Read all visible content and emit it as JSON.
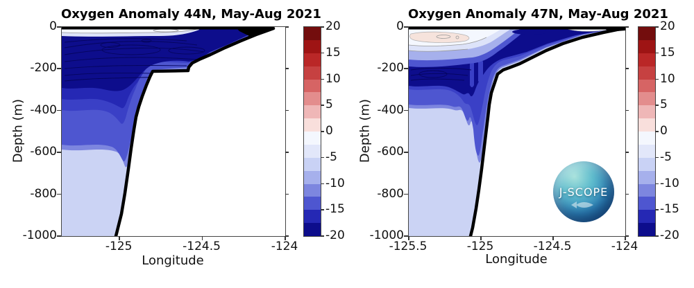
{
  "figure": {
    "background": "#ffffff"
  },
  "panels": [
    {
      "title": "Oxygen Anomaly 44N, May-Aug 2021",
      "xlabel": "Longitude",
      "ylabel": "Depth (m)",
      "x_ticks": [
        "-125",
        "-124.5",
        "-124"
      ],
      "x_tick_lons": [
        -125,
        -124.5,
        -124
      ],
      "y_ticks": [
        "0",
        "-200",
        "-400",
        "-600",
        "-800",
        "-1000"
      ]
    },
    {
      "title": "Oxygen Anomaly 47N, May-Aug 2021",
      "xlabel": "Longitude",
      "ylabel": "Depth (m)",
      "x_ticks": [
        "-125.5",
        "-125",
        "-124.5",
        "-124"
      ],
      "x_tick_lons": [
        -125.5,
        -125,
        -124.5,
        -124
      ],
      "y_ticks": [
        "0",
        "-200",
        "-400",
        "-600",
        "-800",
        "-1000"
      ]
    }
  ],
  "colorbar": {
    "tick_labels": [
      "20",
      "15",
      "10",
      "5",
      "0",
      "-5",
      "-10",
      "-15",
      "-20"
    ],
    "range": [
      -20,
      20
    ],
    "level_step": 2.5,
    "segments_top_to_bottom": [
      "#730d0d",
      "#9e1414",
      "#ba2727",
      "#c64141",
      "#d66464",
      "#e38d8d",
      "#efb7b7",
      "#f9dfdc",
      "#f4f7fe",
      "#e2e7fa",
      "#c9d2f5",
      "#a6b0ec",
      "#7d86df",
      "#4e56d0",
      "#2528b4",
      "#0d0d8c"
    ]
  },
  "palette": {
    "navy": "#0d0d8c",
    "blue2": "#2528b4",
    "blue3": "#3a40c6",
    "royal": "#4e56d0",
    "fringe": "#7d86df",
    "lightblue": "#a6b0ec",
    "paleband": "#dde3f9",
    "pale": "#cbd3f4",
    "white": "#f4f7fe",
    "pink": "#f6e3dc",
    "navyline": "#05055e",
    "grey": "#999999",
    "coast_line": "#000000"
  },
  "logo": {
    "text": "J-SCOPE"
  },
  "chart_data": [
    {
      "type": "heatmap",
      "subtype": "filled-contour-section",
      "title": "Oxygen Anomaly 44N, May-Aug 2021",
      "xlabel": "Longitude",
      "ylabel": "Depth (m)",
      "xlim": [
        -125.348,
        -124.0
      ],
      "ylim": [
        -1000,
        0
      ],
      "colorbar_range": [
        -20,
        20
      ],
      "contour_level_step": 2.5,
      "legend_position": "right-colorbar",
      "grid": false,
      "bathymetry_lon_depth": [
        [
          -124.07,
          0
        ],
        [
          -124.3,
          -120
        ],
        [
          -124.58,
          -205
        ],
        [
          -124.8,
          -215
        ],
        [
          -124.9,
          -420
        ],
        [
          -125.0,
          -800
        ],
        [
          -125.03,
          -1000
        ]
      ],
      "anomaly_profile_west_of_slope": [
        {
          "depth": -10,
          "value": -1
        },
        {
          "depth": -40,
          "value": -12
        },
        {
          "depth": -100,
          "value": -20
        },
        {
          "depth": -180,
          "value": -17
        },
        {
          "depth": -250,
          "value": -12
        },
        {
          "depth": -350,
          "value": -11
        },
        {
          "depth": -450,
          "value": -10
        },
        {
          "depth": -600,
          "value": -5
        },
        {
          "depth": -1000,
          "value": -4
        }
      ],
      "notes": "Large negative oxygen anomaly core (<= -20) between ~40 and 180 m depth over the shelf and slope; pale weakly negative (-2.5 to -7.5) water below ~460 m."
    },
    {
      "type": "heatmap",
      "subtype": "filled-contour-section",
      "title": "Oxygen Anomaly 47N, May-Aug 2021",
      "xlabel": "Longitude",
      "ylabel": "Depth (m)",
      "xlim": [
        -125.5,
        -124.0
      ],
      "ylim": [
        -1000,
        0
      ],
      "colorbar_range": [
        -20,
        20
      ],
      "contour_level_step": 2.5,
      "legend_position": "right-colorbar",
      "grid": false,
      "bathymetry_lon_depth": [
        [
          -124.01,
          0
        ],
        [
          -124.3,
          -60
        ],
        [
          -124.58,
          -115
        ],
        [
          -124.89,
          -200
        ],
        [
          -124.95,
          -370
        ],
        [
          -125.0,
          -640
        ],
        [
          -125.08,
          -1000
        ]
      ],
      "anomaly_profile_west_of_slope": [
        {
          "depth": -15,
          "value": 2
        },
        {
          "depth": -50,
          "value": -5
        },
        {
          "depth": -80,
          "value": -12
        },
        {
          "depth": -150,
          "value": -20
        },
        {
          "depth": -250,
          "value": -14
        },
        {
          "depth": -320,
          "value": -11
        },
        {
          "depth": -450,
          "value": -5
        },
        {
          "depth": -1000,
          "value": -4
        }
      ],
      "notes": "Slightly positive anomaly (~+2.5) in a thin surface lens west of -125; strong negative core (<= -20) between ~90 and 250 m; narrow negative tongue along slope to ~450 m; pale weakly negative water below."
    }
  ]
}
